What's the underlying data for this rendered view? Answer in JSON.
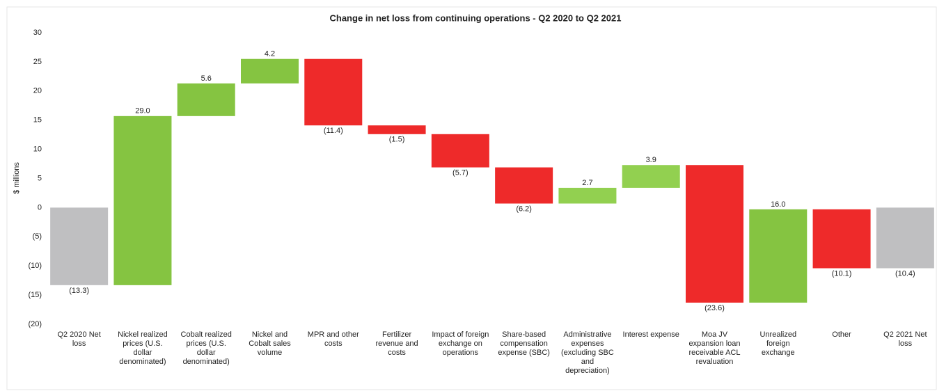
{
  "chart_data": {
    "type": "waterfall",
    "title": "Change in net loss from continuing operations  - Q2 2020 to Q2 2021",
    "y_label": "$ millions",
    "categories": [
      "Q2 2020 Net loss",
      "Nickel realized prices (U.S. dollar denominated)",
      "Cobalt realized prices (U.S. dollar denominated)",
      "Nickel and Cobalt sales volume",
      "MPR and other costs",
      "Fertilizer revenue and costs",
      "Impact of foreign exchange on operations",
      "Share-based compensation expense (SBC)",
      "Administrative expenses (excluding SBC and depreciation)",
      "Interest expense",
      "Moa JV expansion loan receivable ACL revaluation",
      "Unrealized foreign exchange",
      "Other",
      "Q2 2021 Net loss"
    ],
    "values": [
      -13.3,
      29.0,
      5.6,
      4.2,
      -11.4,
      -1.5,
      -5.7,
      -6.2,
      2.7,
      3.9,
      -23.6,
      16.0,
      -10.1,
      -10.4
    ],
    "value_labels": [
      "(13.3)",
      "29.0",
      "5.6",
      "4.2",
      "(11.4)",
      "(1.5)",
      "(5.7)",
      "(6.2)",
      "2.7",
      "3.9",
      "(23.6)",
      "16.0",
      "(10.1)",
      "(10.4)"
    ],
    "measure": [
      "absolute",
      "relative",
      "relative",
      "relative",
      "relative",
      "relative",
      "relative",
      "relative",
      "relative",
      "relative",
      "relative",
      "relative",
      "relative",
      "total"
    ],
    "colors": [
      "#bfbfc1",
      "#85c441",
      "#85c441",
      "#85c441",
      "#ee2a2a",
      "#ee2a2a",
      "#ee2a2a",
      "#ee2a2a",
      "#92d050",
      "#92d050",
      "#ee2a2a",
      "#85c441",
      "#ee2a2a",
      "#bfbfc1"
    ],
    "ylim": [
      -20,
      30
    ],
    "yticks": [
      {
        "value": -20,
        "label": "(20)"
      },
      {
        "value": -15,
        "label": "(15)"
      },
      {
        "value": -10,
        "label": "(10)"
      },
      {
        "value": -5,
        "label": "(5)"
      },
      0,
      5,
      10,
      15,
      20,
      25,
      30
    ]
  }
}
